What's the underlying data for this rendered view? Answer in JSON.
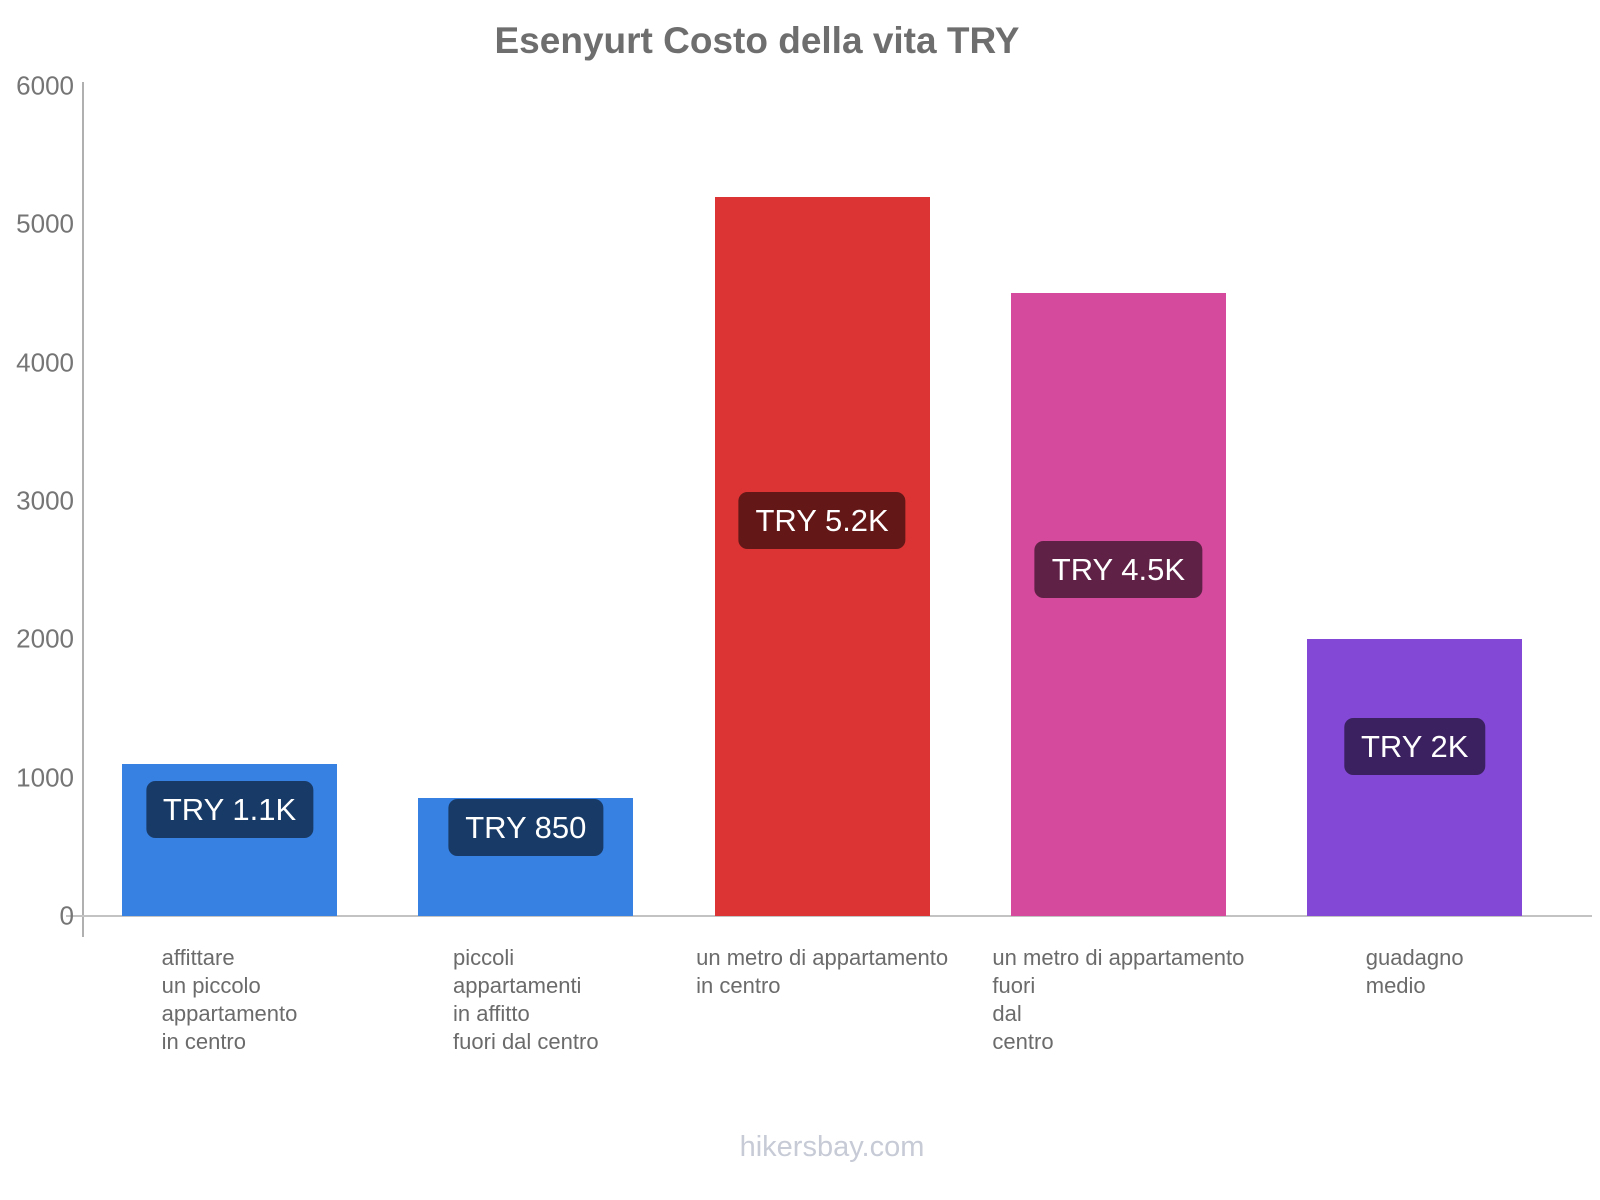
{
  "title": "Esenyurt Costo della vita TRY",
  "footer": "hikersbay.com",
  "chart_data": {
    "type": "bar",
    "title": "Esenyurt Costo della vita TRY",
    "currency": "TRY",
    "categories": [
      "affittare\nun piccolo\nappartamento\nin centro",
      "piccoli\nappartamenti\nin affitto\nfuori dal centro",
      "un metro di appartamento\nin centro",
      "un metro di appartamento\nfuori\ndal\ncentro",
      "guadagno\nmedio"
    ],
    "values": [
      1100,
      850,
      5200,
      4500,
      2000
    ],
    "value_labels": [
      "TRY 1.1K",
      "TRY 850",
      "TRY 5.2K",
      "TRY 4.5K",
      "TRY 2K"
    ],
    "bar_colors": [
      "#3781e2",
      "#3781e2",
      "#dc3434",
      "#d54a9d",
      "#8349d6"
    ],
    "badge_bg": "rgba(0,0,0,0.55)",
    "yticks": [
      0,
      1000,
      2000,
      3000,
      4000,
      5000,
      6000
    ],
    "ylim": [
      0,
      6000
    ],
    "xlabel": "",
    "ylabel": "",
    "grid": false,
    "legend": false
  }
}
